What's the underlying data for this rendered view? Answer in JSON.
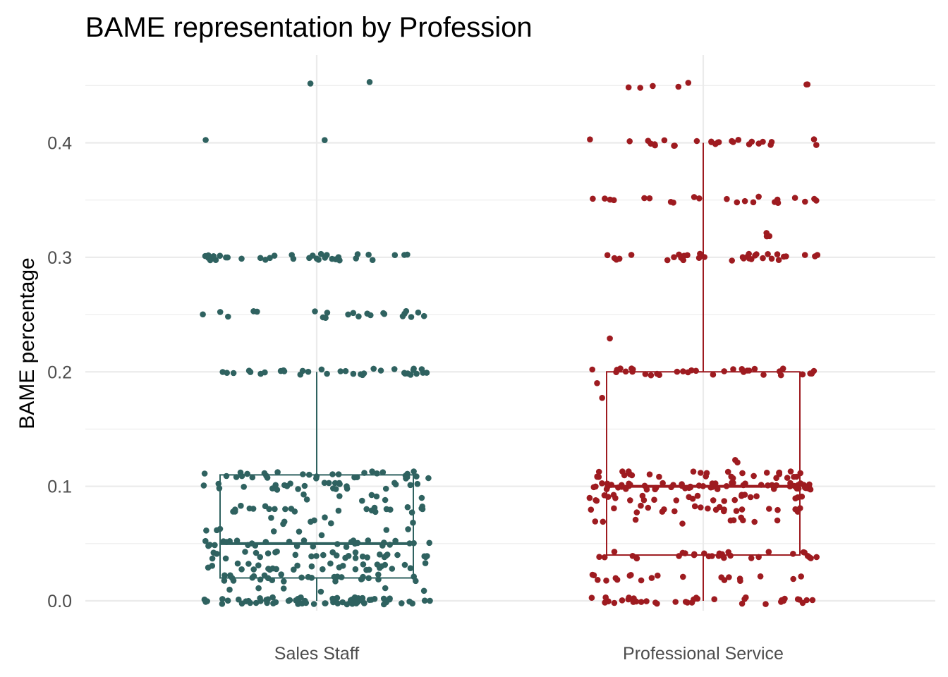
{
  "chart_data": {
    "type": "boxplot",
    "title": "BAME representation by Profession",
    "xlabel": "",
    "ylabel": "BAME percentage",
    "categories": [
      "Sales Staff",
      "Professional Service"
    ],
    "y_ticks": [
      0.0,
      0.1,
      0.2,
      0.3,
      0.4
    ],
    "y_tick_labels": [
      "0.0",
      "0.1",
      "0.2",
      "0.3",
      "0.4"
    ],
    "ylim": [
      -0.0045,
      0.47
    ],
    "grid": true,
    "legend": "none",
    "series": [
      {
        "category": "Sales Staff",
        "color": "#2f6260",
        "box": {
          "whisker_low": 0.0,
          "q1": 0.02,
          "median": 0.05,
          "q3": 0.11,
          "whisker_high": 0.2
        },
        "points": [
          {
            "value": 0.0,
            "count": 70
          },
          {
            "value": 0.01,
            "count": 6
          },
          {
            "value": 0.02,
            "count": 28
          },
          {
            "value": 0.03,
            "count": 30
          },
          {
            "value": 0.04,
            "count": 30
          },
          {
            "value": 0.05,
            "count": 30
          },
          {
            "value": 0.06,
            "count": 8
          },
          {
            "value": 0.07,
            "count": 8
          },
          {
            "value": 0.08,
            "count": 24
          },
          {
            "value": 0.09,
            "count": 8
          },
          {
            "value": 0.1,
            "count": 26
          },
          {
            "value": 0.11,
            "count": 30
          },
          {
            "value": 0.2,
            "count": 34
          },
          {
            "value": 0.25,
            "count": 22
          },
          {
            "value": 0.3,
            "count": 34
          },
          {
            "value": 0.4,
            "count": 2
          },
          {
            "value": 0.45,
            "count": 2
          }
        ]
      },
      {
        "category": "Professional Service",
        "color": "#9e1b20",
        "box": {
          "whisker_low": 0.0,
          "q1": 0.04,
          "median": 0.1,
          "q3": 0.2,
          "whisker_high": 0.4
        },
        "points": [
          {
            "value": 0.0,
            "count": 36
          },
          {
            "value": 0.02,
            "count": 20
          },
          {
            "value": 0.04,
            "count": 30
          },
          {
            "value": 0.07,
            "count": 10
          },
          {
            "value": 0.08,
            "count": 22
          },
          {
            "value": 0.09,
            "count": 26
          },
          {
            "value": 0.1,
            "count": 60
          },
          {
            "value": 0.11,
            "count": 30
          },
          {
            "value": 0.12,
            "count": 2
          },
          {
            "value": 0.18,
            "count": 1
          },
          {
            "value": 0.19,
            "count": 1
          },
          {
            "value": 0.2,
            "count": 34
          },
          {
            "value": 0.23,
            "count": 1
          },
          {
            "value": 0.3,
            "count": 34
          },
          {
            "value": 0.32,
            "count": 3
          },
          {
            "value": 0.35,
            "count": 22
          },
          {
            "value": 0.4,
            "count": 26
          },
          {
            "value": 0.45,
            "count": 7
          }
        ]
      }
    ]
  }
}
